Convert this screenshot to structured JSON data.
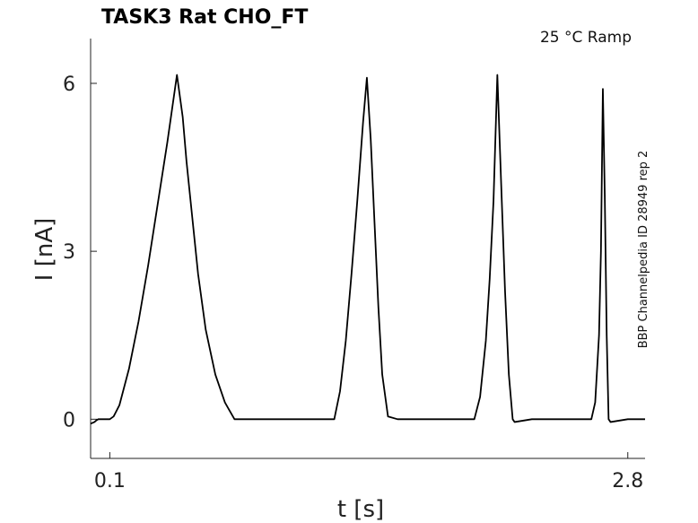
{
  "chart_data": {
    "type": "line",
    "title": "TASK3  Rat  CHO_FT",
    "annotation": "25 °C  Ramp",
    "side_text": "BBP Channelpedia ID 28949 rep 2",
    "xlabel": "t [s]",
    "ylabel": "I [nA]",
    "xlim": [
      0.0,
      2.89
    ],
    "ylim": [
      -0.7,
      6.8
    ],
    "xticks": [
      {
        "value": 0.1,
        "label": "0.1"
      },
      {
        "value": 2.8,
        "label": "2.8"
      }
    ],
    "yticks": [
      {
        "value": 0,
        "label": "0"
      },
      {
        "value": 3,
        "label": "3"
      },
      {
        "value": 6,
        "label": "6"
      }
    ],
    "grid": false,
    "series": [
      {
        "color": "#000000",
        "x": [
          0.0,
          0.02,
          0.03,
          0.04,
          0.1,
          0.12,
          0.15,
          0.2,
          0.25,
          0.3,
          0.35,
          0.4,
          0.45,
          0.48,
          0.5,
          0.53,
          0.56,
          0.6,
          0.65,
          0.7,
          0.75,
          0.8,
          0.85,
          0.89,
          1.0,
          1.1,
          1.2,
          1.27,
          1.3,
          1.33,
          1.36,
          1.39,
          1.42,
          1.44,
          1.46,
          1.48,
          1.5,
          1.52,
          1.55,
          1.6,
          1.7,
          1.8,
          1.9,
          2.0,
          2.03,
          2.06,
          2.08,
          2.1,
          2.12,
          2.14,
          2.16,
          2.18,
          2.2,
          2.21,
          2.3,
          2.4,
          2.5,
          2.61,
          2.63,
          2.65,
          2.66,
          2.67,
          2.68,
          2.69,
          2.7,
          2.71,
          2.8,
          2.89
        ],
        "y": [
          -0.08,
          -0.05,
          -0.02,
          0.0,
          0.0,
          0.05,
          0.25,
          0.9,
          1.75,
          2.75,
          3.85,
          4.95,
          6.15,
          5.4,
          4.6,
          3.6,
          2.6,
          1.6,
          0.8,
          0.3,
          0.0,
          0.0,
          0.0,
          0.0,
          0.0,
          0.0,
          0.0,
          0.0,
          0.5,
          1.4,
          2.6,
          3.9,
          5.3,
          6.1,
          5.0,
          3.5,
          2.0,
          0.8,
          0.05,
          0.0,
          0.0,
          0.0,
          0.0,
          0.0,
          0.4,
          1.4,
          2.5,
          3.9,
          6.15,
          4.2,
          2.3,
          0.8,
          0.0,
          -0.05,
          0.0,
          0.0,
          0.0,
          0.0,
          0.3,
          1.5,
          3.0,
          5.9,
          4.0,
          1.5,
          0.0,
          -0.05,
          0.0,
          0.0
        ]
      }
    ]
  }
}
